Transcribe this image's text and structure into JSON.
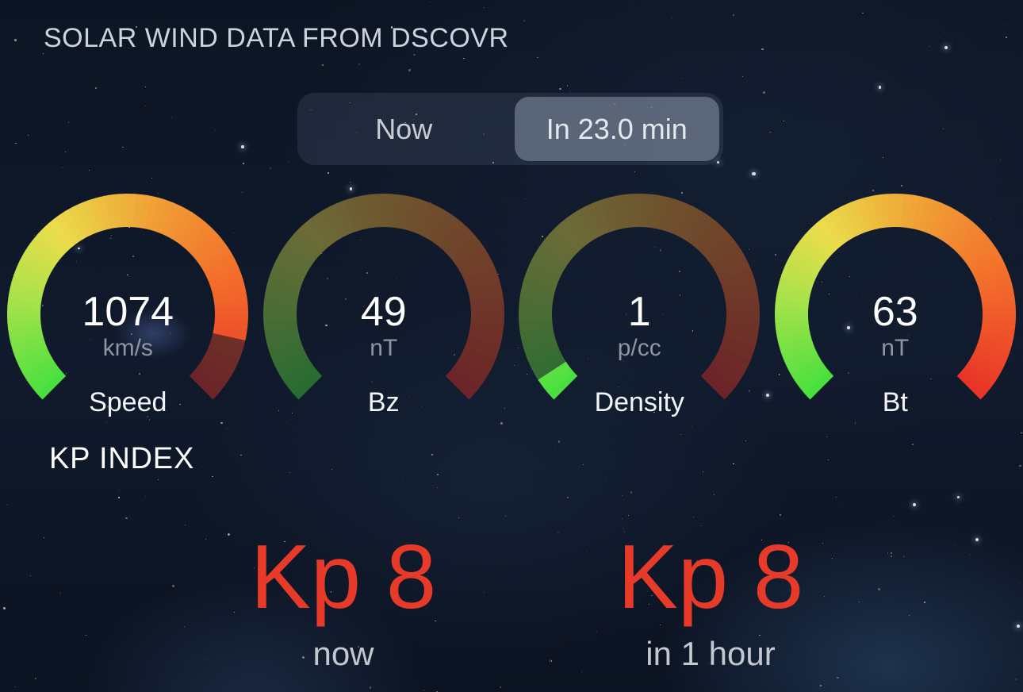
{
  "title": "SOLAR WIND DATA FROM DSCOVR",
  "time_toggle": {
    "options": [
      {
        "label": "Now",
        "selected": false
      },
      {
        "label": "In 23.0 min",
        "selected": true
      }
    ]
  },
  "gauges": {
    "items": [
      {
        "label": "Speed",
        "value": "1074",
        "unit": "km/s",
        "fill": 0.88
      },
      {
        "label": "Bz",
        "value": "49",
        "unit": "nT",
        "fill": 0
      },
      {
        "label": "Density",
        "value": "1",
        "unit": "p/cc",
        "fill": 0.045
      },
      {
        "label": "Bt",
        "value": "63",
        "unit": "nT",
        "fill": 1
      }
    ],
    "gradient": [
      {
        "t": 0,
        "color": "#46e03e"
      },
      {
        "t": 0.2,
        "color": "#a9e24a"
      },
      {
        "t": 0.35,
        "color": "#eadd4b"
      },
      {
        "t": 0.55,
        "color": "#f0a035"
      },
      {
        "t": 0.75,
        "color": "#f3702b"
      },
      {
        "t": 1,
        "color": "#e93327"
      }
    ]
  },
  "kp": {
    "heading": "KP INDEX",
    "items": [
      {
        "value": "Kp 8",
        "label": "now"
      },
      {
        "value": "Kp 8",
        "label": "in 1 hour"
      }
    ]
  },
  "colors": {
    "kp_value": "#e83a29",
    "value_text": "#ffffff",
    "unit_text": "#8f96a1",
    "title_text": "#ccd3dc",
    "sub_text": "#c3c8cf",
    "seg_selected_bg": "#5d6575",
    "background": "#0e1626"
  }
}
